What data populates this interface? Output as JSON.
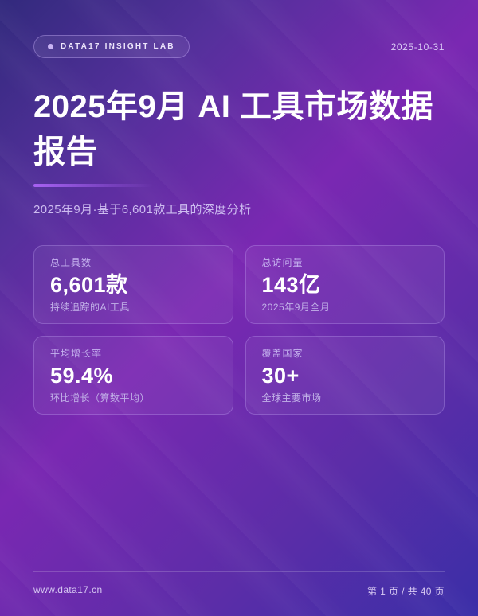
{
  "header": {
    "badge_label": "DATA17 INSIGHT LAB",
    "date": "2025-10-31"
  },
  "hero": {
    "title": "2025年9月 AI 工具市场数据报告",
    "subtitle": "2025年9月·基于6,601款工具的深度分析"
  },
  "stats": {
    "cards": [
      {
        "label": "总工具数",
        "value": "6,601款",
        "sub": "持续追踪的AI工具"
      },
      {
        "label": "总访问量",
        "value": "143亿",
        "sub": "2025年9月全月"
      },
      {
        "label": "平均增长率",
        "value": "59.4%",
        "sub": "环比增长（算数平均）"
      },
      {
        "label": "覆盖国家",
        "value": "30+",
        "sub": "全球主要市场"
      }
    ]
  },
  "footer": {
    "site": "www.data17.cn",
    "page": "第 1 页 / 共 40 页"
  },
  "colors": {
    "background_start": "#322a7d",
    "background_mid": "#7a28b2",
    "background_end": "#3a2ea7",
    "accent_divider": "#a761f2",
    "badge_dot": "#c9b3f3",
    "text_primary": "#ffffff",
    "text_muted": "#cdbcf0"
  }
}
